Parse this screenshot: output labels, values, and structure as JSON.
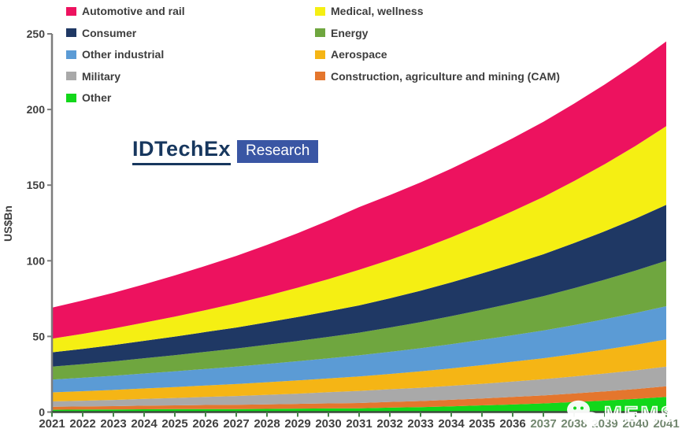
{
  "logo": {
    "brand": "IDTechEx",
    "sub": "Research",
    "brand_color": "#17375E",
    "box_color": "#3A56A4"
  },
  "watermark": {
    "text": "MEMS",
    "icon": "wechat-icon"
  },
  "chart_data": {
    "type": "area",
    "stacked": true,
    "title": "",
    "xlabel": "",
    "ylabel": "US$Bn",
    "ylim": [
      0,
      250
    ],
    "yticks": [
      0,
      50,
      100,
      150,
      200,
      250
    ],
    "grid": false,
    "legend_position": "top-left, two columns",
    "years": [
      2021,
      2022,
      2023,
      2024,
      2025,
      2026,
      2027,
      2028,
      2029,
      2030,
      2031,
      2032,
      2033,
      2034,
      2035,
      2036,
      2037,
      2038,
      2039,
      2040,
      2041
    ],
    "washed_years_start": 2037,
    "axis_colors": {
      "x_axis": "#3c4a3c",
      "x_ticks": "#47824a",
      "y_axis": "#7d7d7d",
      "labels": "#3f3f3f"
    },
    "series": [
      {
        "key": "other",
        "label": "Other",
        "color": "#12D71A",
        "legend_column": "left",
        "values": [
          1.5,
          1.6,
          1.7,
          1.8,
          1.9,
          2.0,
          2.0,
          2.1,
          2.3,
          2.4,
          2.5,
          2.9,
          3.3,
          3.8,
          4.4,
          5.0,
          5.7,
          6.6,
          7.6,
          8.7,
          10.0
        ]
      },
      {
        "key": "cam",
        "label": "Construction, agriculture and mining (CAM)",
        "color": "#E4762D",
        "legend_column": "right",
        "values": [
          2.0,
          2.1,
          2.2,
          2.4,
          2.5,
          2.7,
          2.8,
          3.0,
          3.1,
          3.3,
          3.5,
          3.8,
          4.0,
          4.3,
          4.6,
          5.0,
          5.3,
          5.7,
          6.1,
          6.5,
          7.0
        ]
      },
      {
        "key": "military",
        "label": "Military",
        "color": "#A9A9A9",
        "legend_column": "left",
        "values": [
          3.5,
          3.8,
          4.1,
          4.5,
          4.9,
          5.3,
          5.8,
          6.3,
          6.8,
          7.4,
          8.0,
          8.4,
          8.8,
          9.3,
          9.7,
          10.2,
          10.7,
          11.2,
          11.8,
          12.4,
          13.0
        ]
      },
      {
        "key": "aerospace",
        "label": "Aerospace",
        "color": "#F5B515",
        "legend_column": "right",
        "values": [
          6.0,
          6.3,
          6.6,
          6.9,
          7.2,
          7.6,
          7.9,
          8.3,
          8.7,
          9.1,
          9.5,
          10.1,
          10.8,
          11.5,
          12.3,
          13.1,
          13.9,
          14.8,
          15.8,
          16.9,
          18.0
        ]
      },
      {
        "key": "other_industrial",
        "label": "Other industrial",
        "color": "#5B9BD5",
        "legend_column": "left",
        "values": [
          8.5,
          8.9,
          9.4,
          9.9,
          10.4,
          10.9,
          11.5,
          12.1,
          12.7,
          13.3,
          14.0,
          14.6,
          15.3,
          16.0,
          16.8,
          17.5,
          18.3,
          19.2,
          20.1,
          21.0,
          22.0
        ]
      },
      {
        "key": "energy",
        "label": "Energy",
        "color": "#6FA63F",
        "legend_column": "right",
        "values": [
          8.5,
          9.0,
          9.5,
          10.1,
          10.7,
          11.3,
          12.0,
          12.7,
          13.4,
          14.2,
          15.0,
          16.1,
          17.2,
          18.5,
          19.8,
          21.2,
          22.7,
          24.4,
          26.1,
          28.0,
          30.0
        ]
      },
      {
        "key": "consumer",
        "label": "Consumer",
        "color": "#1F3864",
        "legend_column": "left",
        "values": [
          9.5,
          10.1,
          10.8,
          11.5,
          12.3,
          13.1,
          13.9,
          14.8,
          15.8,
          16.9,
          18.0,
          19.3,
          20.8,
          22.3,
          24.0,
          25.8,
          27.7,
          29.8,
          32.0,
          34.4,
          37.0
        ]
      },
      {
        "key": "medical",
        "label": "Medical, wellness",
        "color": "#F5EF13",
        "legend_column": "right",
        "values": [
          9.0,
          9.9,
          10.9,
          12.0,
          13.2,
          14.5,
          16.0,
          17.6,
          19.4,
          21.3,
          23.5,
          25.4,
          27.5,
          29.8,
          32.3,
          35.0,
          37.9,
          41.0,
          44.4,
          48.0,
          52.0
        ]
      },
      {
        "key": "automotive",
        "label": "Automotive and rail",
        "color": "#ED125F",
        "legend_column": "left",
        "values": [
          20.5,
          22.0,
          23.6,
          25.3,
          27.2,
          29.2,
          31.3,
          33.6,
          36.0,
          38.7,
          41.5,
          42.8,
          44.1,
          45.4,
          46.8,
          48.2,
          49.7,
          51.2,
          52.7,
          54.3,
          56.0
        ]
      }
    ],
    "legend": {
      "left": [
        "automotive",
        "consumer",
        "other_industrial",
        "military",
        "other"
      ],
      "right": [
        "medical",
        "energy",
        "aerospace",
        "cam"
      ]
    }
  }
}
